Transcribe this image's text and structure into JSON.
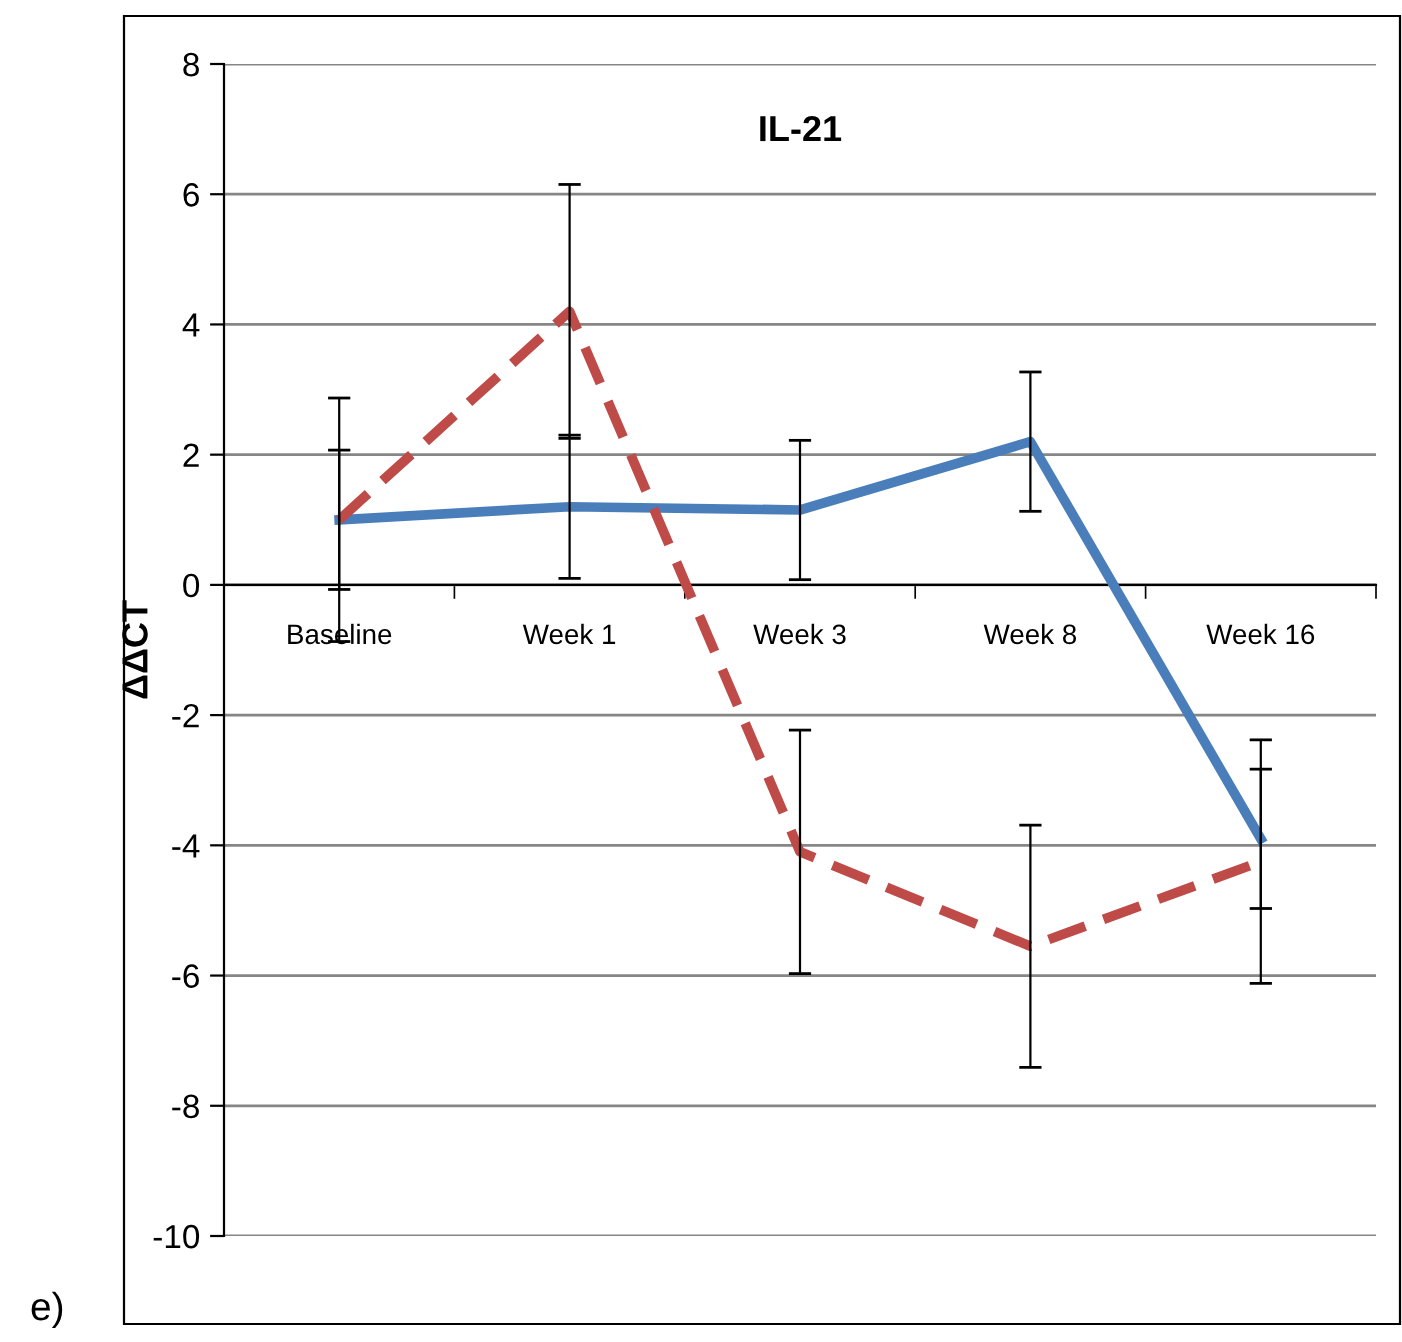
{
  "chart_data": {
    "type": "line",
    "title": "IL-21",
    "ylabel": "ΔΔCT",
    "categories": [
      "Baseline",
      "Week 1",
      "Week 3",
      "Week 8",
      "Week 16"
    ],
    "series": [
      {
        "color": "#4a7ebb",
        "line_style": "solid",
        "values": [
          1.0,
          1.2,
          1.15,
          2.2,
          -3.9
        ],
        "errors": [
          1.07,
          1.1,
          1.07,
          1.07,
          1.07
        ]
      },
      {
        "color": "#be4b48",
        "line_style": "dashed",
        "values": [
          1.0,
          4.2,
          -4.1,
          -5.55,
          -4.25
        ],
        "errors": [
          1.87,
          1.95,
          1.87,
          1.86,
          1.87
        ]
      }
    ],
    "ylim": [
      -10,
      8
    ],
    "yticks": [
      -10,
      -8,
      -6,
      -4,
      -2,
      0,
      2,
      4,
      6,
      8
    ],
    "grid": "y",
    "legend": false,
    "marker": "none",
    "annotations": [
      "e)"
    ]
  }
}
